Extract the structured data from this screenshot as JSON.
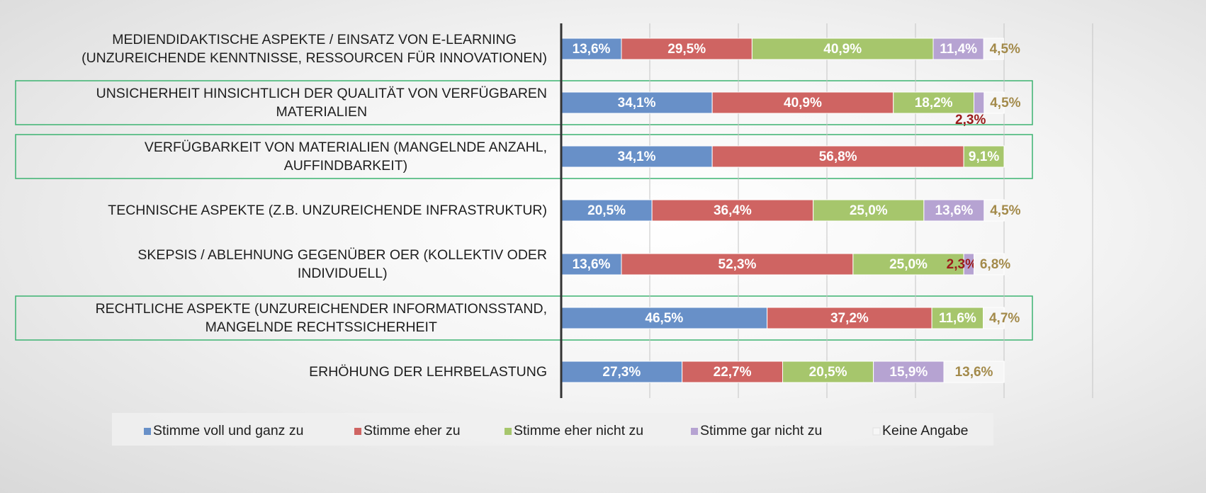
{
  "chart_data": {
    "type": "stacked_barh",
    "categories": [
      "MEDIENDIDAKTISCHE ASPEKTE / EINSATZ VON E-LEARNING\n(UNZUREICHENDE KENNTNISSE, RESSOURCEN FÜR INNOVATIONEN)",
      "UNSICHERHEIT HINSICHTLICH DER QUALITÄT VON VERFÜGBAREN\nMATERIALIEN",
      "VERFÜGBARKEIT VON MATERIALIEN (MANGELNDE ANZAHL,\nAUFFINDBARKEIT)",
      "TECHNISCHE ASPEKTE (Z.B. UNZUREICHENDE INFRASTRUKTUR)",
      "SKEPSIS / ABLEHNUNG GEGENÜBER OER (KOLLEKTIV ODER\nINDIVIDUELL)",
      "RECHTLICHE ASPEKTE (UNZUREICHENDER INFORMATIONSSTAND,\nMANGELNDE RECHTSSICHERHEIT",
      "ERHÖHUNG DER LEHRBELASTUNG"
    ],
    "highlight": [
      false,
      true,
      true,
      false,
      false,
      true,
      false
    ],
    "series": [
      {
        "name": "Stimme voll und ganz zu",
        "color": "#6890c8",
        "label_color": "#ffffff",
        "values": [
          13.6,
          34.1,
          34.1,
          20.5,
          13.6,
          46.5,
          27.3
        ],
        "value_labels": [
          "13,6%",
          "34,1%",
          "34,1%",
          "20,5%",
          "13,6%",
          "46,5%",
          "27,3%"
        ]
      },
      {
        "name": "Stimme eher zu",
        "color": "#cf6462",
        "label_color": "#ffffff",
        "values": [
          29.5,
          40.9,
          56.8,
          36.4,
          52.3,
          37.2,
          22.7
        ],
        "value_labels": [
          "29,5%",
          "40,9%",
          "56,8%",
          "36,4%",
          "52,3%",
          "37,2%",
          "22,7%"
        ]
      },
      {
        "name": "Stimme eher nicht zu",
        "color": "#a6c66c",
        "label_color": "#ffffff",
        "values": [
          40.9,
          18.2,
          9.1,
          25.0,
          25.0,
          11.6,
          20.5
        ],
        "value_labels": [
          "40,9%",
          "18,2%",
          "9,1%",
          "25,0%",
          "25,0%",
          "11,6%",
          "20,5%"
        ]
      },
      {
        "name": "Stimme gar nicht zu",
        "color": "#b6a3d2",
        "label_color": "#ffffff",
        "values": [
          11.4,
          2.3,
          null,
          13.6,
          2.3,
          null,
          15.9
        ],
        "value_labels": [
          "11,4%",
          "2,3%",
          null,
          "13,6%",
          "2,3%",
          null,
          "15,9%"
        ]
      },
      {
        "name": "Keine Angabe",
        "color": "#f6f6f6",
        "label_color": "#a38a4a",
        "values": [
          4.5,
          4.5,
          null,
          4.5,
          6.8,
          4.7,
          13.6
        ],
        "value_labels": [
          "4,5%",
          "4,5%",
          null,
          "4,5%",
          "6,8%",
          "4,7%",
          "13,6%"
        ]
      }
    ],
    "xlim": [
      0,
      120
    ],
    "xticks": [
      0,
      20,
      40,
      60,
      80,
      100,
      120
    ],
    "grid": true,
    "legend": "bottom"
  }
}
